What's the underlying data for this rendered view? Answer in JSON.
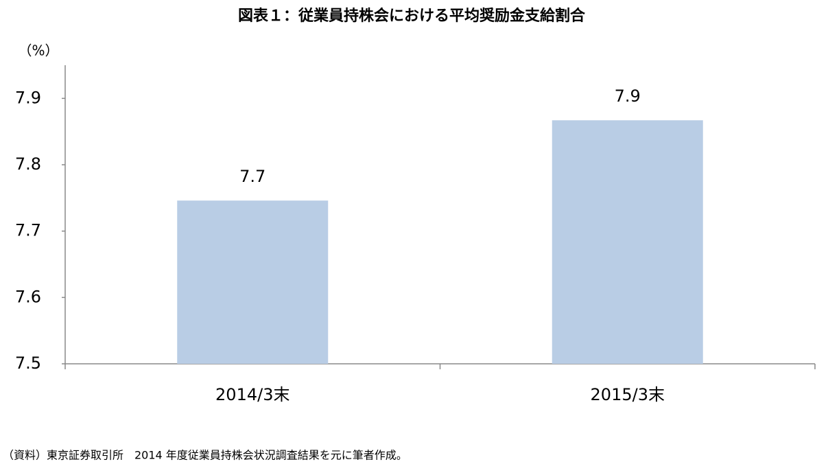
{
  "chart_data": {
    "type": "bar",
    "title": "図表１：従業員持株会における平均奨励金支給割合",
    "y_label": "（%）",
    "categories": [
      "2014/3末",
      "2015/3末"
    ],
    "values": [
      7.746,
      7.867
    ],
    "value_labels": [
      "7.7",
      "7.9"
    ],
    "color": "#b9cde5",
    "ylim": [
      7.5,
      7.95
    ],
    "yticks": [
      7.5,
      7.6,
      7.7,
      7.8,
      7.9
    ],
    "grid": false,
    "note": "（資料）東京証券取引所　2014 年度従業員持株会状況調査結果を元に筆者作成。"
  }
}
